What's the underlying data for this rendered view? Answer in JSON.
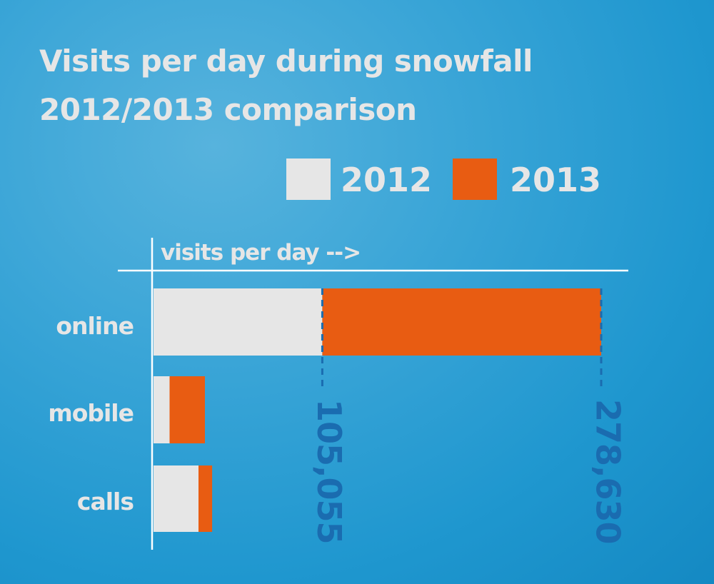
{
  "title_lines": [
    "Visits per day during snowfall",
    "2012/2013 comparison"
  ],
  "legend": [
    {
      "label": "2012",
      "color": "#e6e6e6"
    },
    {
      "label": "2013",
      "color": "#e85c12"
    }
  ],
  "colors": {
    "background": "#2a9fd6",
    "text": "#e6e6e6",
    "axis": "#ffffff",
    "data_label": "#1a6cb0"
  },
  "chart_data": {
    "type": "bar",
    "orientation": "horizontal",
    "stacked": true,
    "title": "Visits per day during snowfall 2012/2013 comparison",
    "xlabel": "visits per day -->",
    "ylabel": "",
    "categories": [
      "online",
      "mobile",
      "calls"
    ],
    "series": [
      {
        "name": "2012",
        "color": "#e6e6e6",
        "values": [
          105055,
          10000,
          28000
        ]
      },
      {
        "name": "2013",
        "color": "#e85c12",
        "values": [
          173575,
          22000,
          8500
        ]
      }
    ],
    "data_labels": [
      "105,055",
      "278,630"
    ],
    "xlim": [
      0,
      278630
    ],
    "grid": false,
    "legend_position": "top-right"
  }
}
